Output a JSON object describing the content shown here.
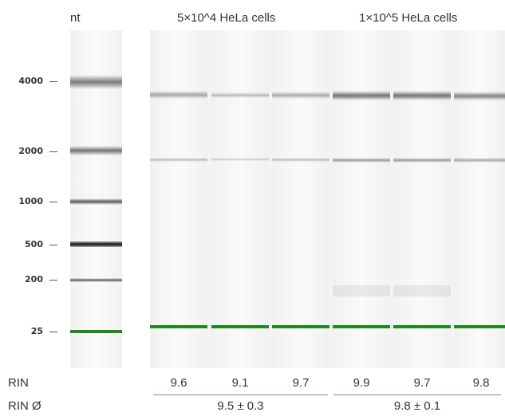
{
  "headers": {
    "ladder_unit": "nt",
    "group1": "5×10^4 HeLa cells",
    "group2": "1×10^5 HeLa cells"
  },
  "ladder_labels": [
    "4000",
    "2000",
    "1000",
    "500",
    "200",
    "25"
  ],
  "rin": {
    "label": "RIN",
    "values": [
      "9.6",
      "9.1",
      "9.7",
      "9.9",
      "9.7",
      "9.8"
    ],
    "avg_label": "RIN Ø",
    "group1_avg": "9.5 ± 0.3",
    "group2_avg": "9.8 ± 0.1"
  },
  "colors": {
    "marker_band": "#1e8a1e",
    "divider_line": "#6b8fb5"
  }
}
